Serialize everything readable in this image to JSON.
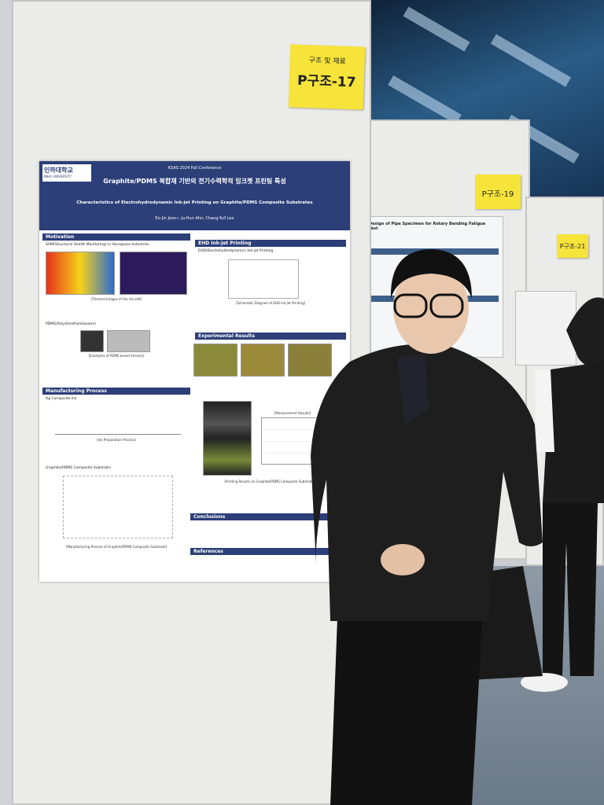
{
  "signs": [
    {
      "category": "구조 및 재료",
      "code": "P구조-17"
    },
    {
      "code": "P구조-19"
    },
    {
      "code": "P구조-21"
    }
  ],
  "poster": {
    "logo": "인하대학교",
    "logo_sub": "INHA UNIVERSITY",
    "conference": "KSAS 2024 Fall Conference",
    "title": "Graphite/PDMS 복합재 기반의 전기수력학적 잉크젯 프린팅 특성",
    "subtitle": "Characteristics of Electrohydrodynamic Ink-jet Printing on Graphite/PDMS Composite Substrates",
    "authors": "Eo-Jin Jeon•, Ju-Hun Ahn, Chang-Yull Lee",
    "sections": {
      "motivation": {
        "heading": "Motivation",
        "item1": "SHM(Structural Health Monitoring) in Aerospace Industries",
        "caption1": "[Thermal Images of the Aircraft]",
        "item2": "PDMS(Polydimethylsiloxane)",
        "caption2": "[Examples of PDMS based Sensors]"
      },
      "manufacturing": {
        "heading": "Manufacturing Process",
        "item1": "Ag Composite Ink",
        "caption1": "[Ink Preparation Process]",
        "item2": "Graphite/PDMS Composite Substrate",
        "caption2": "[Manufacturing Process of Graphite/PDMS Composite Substrate]"
      },
      "ehd": {
        "heading": "EHD Ink-jet Printing",
        "item1": "EHD(Electrohydrodynamic) Ink-jet Printing",
        "caption1": "[Schematic Diagram of EHD Ink-jet Printing]"
      },
      "results": {
        "heading": "Experimental Results",
        "caption1": "[Printing Results on Graphite/PDMS Composite Substrates]",
        "table_caption": "[Measurement Results]"
      },
      "conclusions": {
        "heading": "Conclusions"
      },
      "references": {
        "heading": "References"
      }
    }
  },
  "neighbor_poster": {
    "title": "Design of Pipe Specimen for Rotary Bending Fatigue Test"
  }
}
